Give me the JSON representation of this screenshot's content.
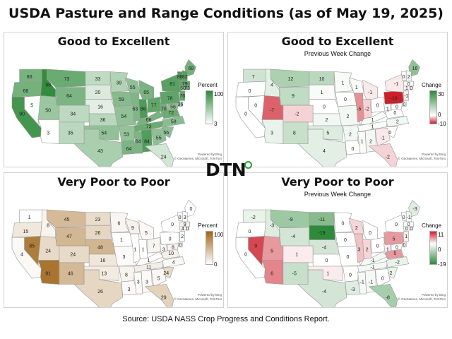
{
  "title": "USDA Pasture and Range Conditions (as of May 19, 2025)",
  "source": "Source:  USDA NASS Crop Progress and Conditions Report.",
  "logo": {
    "text": "DTN",
    "icon": "green-circle-dot-icon"
  },
  "attribution": [
    "Powered by Bing",
    "© GeoNames, Microsoft, TomTom"
  ],
  "panels": [
    {
      "title": "Good to Excellent",
      "subtitle": "",
      "legend": {
        "title": "Percent",
        "max": "100",
        "min": "3",
        "colors": [
          "#2f8a3a",
          "#ffffff"
        ]
      },
      "states": {
        "WA": 66,
        "OR": 68,
        "CA": 90,
        "NV": 5,
        "ID": 98,
        "MT": 73,
        "WY": 64,
        "UT": 50,
        "AZ": 3,
        "CO": 34,
        "NM": 35,
        "ND": 33,
        "SD": 20,
        "NE": 16,
        "KS": 36,
        "OK": 54,
        "TX": 43,
        "MN": 39,
        "IA": 59,
        "MO": 54,
        "AR": 53,
        "LA": 64,
        "WI": 55,
        "IL": 63,
        "MS": 64,
        "MI": 65,
        "IN": 86,
        "KY": 66,
        "TN": 73,
        "AL": 84,
        "OH": 77,
        "WV": 70,
        "VA": 72,
        "NC": 58,
        "SC": 56,
        "GA": 55,
        "FL": 24,
        "PA": 78,
        "NY": 81,
        "ME": 68,
        "VT": 86,
        "NH": 82,
        "MA": 79,
        "CT": 60,
        "NJ": 76,
        "MD": 56,
        "DE": 36,
        "RI": 73
      }
    },
    {
      "title": "Good to Excellent",
      "subtitle": "Previous Week Change",
      "legend": {
        "title": "Change",
        "max": "30",
        "mid": "0",
        "min": "-10",
        "colors": [
          "#2f8a3a",
          "#ffffff",
          "#cc1f2a"
        ]
      },
      "states": {
        "WA": 7,
        "OR": 0,
        "CA": 0,
        "NV": 0,
        "ID": 4,
        "MT": 12,
        "WY": 9,
        "UT": -7,
        "AZ": 3,
        "CO": -2,
        "NM": 8,
        "ND": 10,
        "SD": 1,
        "NE": 0,
        "KS": 2,
        "OK": 5,
        "TX": 4,
        "MN": 1,
        "IA": 0,
        "MO": 2,
        "AR": 2,
        "LA": 0,
        "WI": 1,
        "IL": -5,
        "MS": 1,
        "MI": -1,
        "IN": -2,
        "KY": 1,
        "TN": 1,
        "AL": 2,
        "OH": 0,
        "WV": 1,
        "VA": 0,
        "NC": 2,
        "SC": 0,
        "GA": -1,
        "FL": -2,
        "PA": -10,
        "NY": -1,
        "ME": 16,
        "VT": 0,
        "NH": 2,
        "MA": 0,
        "CT": 1,
        "NJ": -1,
        "MD": 0,
        "DE": 0,
        "RI": 0
      }
    },
    {
      "title": "Very Poor to Poor",
      "subtitle": "",
      "legend": {
        "title": "Percent",
        "max": "100",
        "min": "0",
        "colors": [
          "#a0661a",
          "#ffffff"
        ]
      },
      "states": {
        "WA": 1,
        "OR": 15,
        "CA": 4,
        "NV": 85,
        "ID": 8,
        "MT": 45,
        "WY": 47,
        "UT": 24,
        "AZ": 91,
        "CO": 24,
        "NM": 46,
        "ND": 23,
        "SD": 26,
        "NE": 48,
        "KS": 16,
        "OK": 13,
        "TX": 26,
        "MN": 6,
        "IA": 1,
        "MO": 3,
        "AR": 8,
        "LA": 3,
        "WI": 9,
        "IL": 1,
        "MS": 3,
        "MI": 5,
        "IN": 1,
        "KY": 1,
        "TN": 11,
        "AL": 3,
        "OH": 7,
        "WV": 3,
        "VA": 10,
        "NC": 4,
        "SC": 24,
        "GA": 5,
        "FL": 29,
        "PA": 0,
        "NY": 0,
        "ME": 0,
        "VT": 0,
        "NH": 3,
        "MA": 9,
        "CT": 4,
        "NJ": 2,
        "MD": 8,
        "DE": 0,
        "RI": 0
      }
    },
    {
      "title": "Very Poor to Poor",
      "subtitle": "Previous Week Change",
      "legend": {
        "title": "Change",
        "max": "11",
        "mid": "0",
        "min": "-19",
        "colors": [
          "#cc1f2a",
          "#ffffff",
          "#2f8a3a"
        ]
      },
      "states": {
        "WA": -2,
        "OR": 0,
        "CA": 0,
        "NV": 9,
        "ID": -3,
        "MT": -9,
        "WY": -4,
        "UT": 5,
        "AZ": 6,
        "CO": 1,
        "NM": -5,
        "ND": -11,
        "SD": -19,
        "NE": -4,
        "KS": 0,
        "OK": 1,
        "TX": -4,
        "MN": 0,
        "IA": 0,
        "MO": 0,
        "AR": 0,
        "LA": -3,
        "WI": 2,
        "IL": 3,
        "MS": -1,
        "MI": 0,
        "IN": 2,
        "KY": -1,
        "TN": -1,
        "AL": -1,
        "OH": 0,
        "WV": 1,
        "VA": 5,
        "NC": -2,
        "SC": -2,
        "GA": 0,
        "FL": -8,
        "PA": 5,
        "NY": 0,
        "ME": -3,
        "VT": 0,
        "NH": -1,
        "MA": 0,
        "CT": 0,
        "NJ": 1,
        "MD": 0,
        "DE": 0,
        "RI": 0
      }
    }
  ]
}
